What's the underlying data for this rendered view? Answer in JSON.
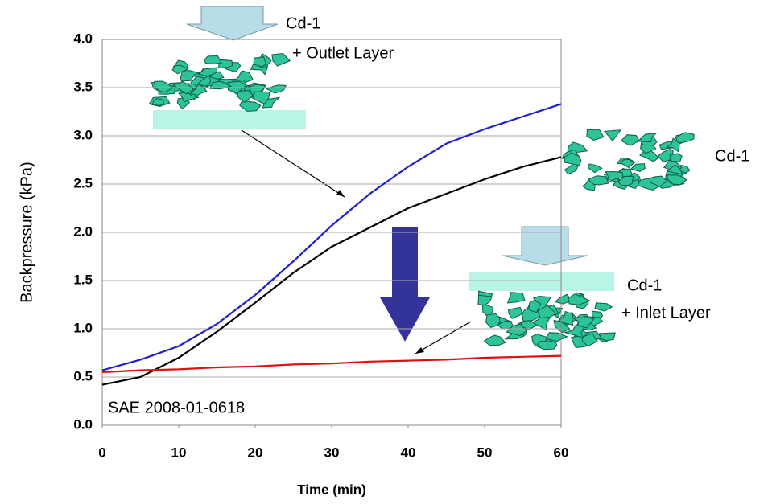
{
  "chart_data": {
    "type": "line",
    "x_label": "Time (min)",
    "y_label": "Backpressure (kPa)",
    "source_note": "SAE 2008-01-0618",
    "xlim": [
      0,
      60
    ],
    "xticks": [
      0,
      10,
      20,
      30,
      40,
      50,
      60
    ],
    "ylim": [
      0,
      4
    ],
    "yticks": [
      {
        "value": 0,
        "label": "0.0"
      },
      0.5,
      {
        "value": 1,
        "label": "1.0"
      },
      1.5,
      {
        "value": 2,
        "label": "2.0"
      },
      2.5,
      {
        "value": 3,
        "label": "3.0"
      },
      3.5,
      {
        "value": 4,
        "label": "4.0"
      }
    ],
    "grid": true,
    "x": [
      0,
      5,
      10,
      15,
      20,
      25,
      30,
      35,
      40,
      45,
      50,
      55,
      60
    ],
    "series": [
      {
        "color": "#1f1fd0",
        "values": [
          0.57,
          0.68,
          0.82,
          1.05,
          1.35,
          1.7,
          2.07,
          2.4,
          2.68,
          2.92,
          3.07,
          3.2,
          3.33
        ]
      },
      {
        "color": "#000000",
        "values": [
          0.42,
          0.5,
          0.7,
          0.97,
          1.27,
          1.58,
          1.85,
          2.05,
          2.25,
          2.4,
          2.55,
          2.68,
          2.78
        ]
      },
      {
        "color": "#e01010",
        "values": [
          0.55,
          0.57,
          0.58,
          0.6,
          0.61,
          0.63,
          0.64,
          0.66,
          0.67,
          0.68,
          0.7,
          0.71,
          0.72
        ]
      }
    ],
    "annotations": [
      {
        "lines": [
          "Cd-1",
          "+ Outlet Layer"
        ]
      },
      {
        "lines": [
          "Cd-1"
        ]
      },
      {
        "lines": [
          "Cd-1",
          "+ Inlet Layer"
        ]
      }
    ]
  }
}
